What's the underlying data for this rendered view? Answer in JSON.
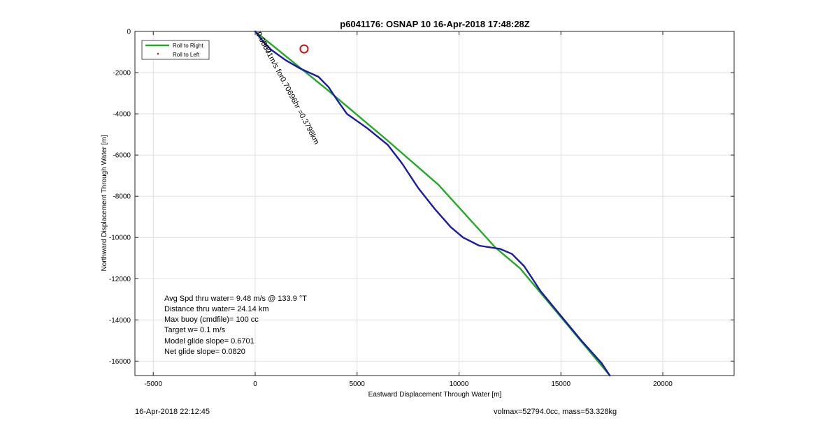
{
  "chart_data": {
    "type": "line",
    "title": "p6041176: OSNAP 10 16-Apr-2018 17:48:28Z",
    "xlabel": "Eastward Displacement Through Water [m]",
    "ylabel": "Northward Displacement Through Water [m]",
    "xlim": [
      -5900,
      23500
    ],
    "ylim": [
      -16700,
      0
    ],
    "xticks": [
      -5000,
      0,
      5000,
      10000,
      15000,
      20000
    ],
    "yticks": [
      0,
      -2000,
      -4000,
      -6000,
      -8000,
      -10000,
      -12000,
      -14000,
      -16000
    ],
    "grid": true,
    "legend_position": "top-left",
    "legend": [
      {
        "label": "Roll to Right",
        "color": "#22aa22",
        "style": "line"
      },
      {
        "label": "Roll to Left",
        "color": "#cc1111",
        "style": "dot"
      }
    ],
    "series": [
      {
        "color": "#22aa22",
        "points": [
          [
            0,
            0
          ],
          [
            3500,
            -2800
          ],
          [
            6500,
            -5300
          ],
          [
            9000,
            -7450
          ],
          [
            11800,
            -10500
          ],
          [
            13000,
            -11500
          ],
          [
            17400,
            -16700
          ]
        ]
      },
      {
        "color": "#1a1aaa",
        "points": [
          [
            0,
            0
          ],
          [
            400,
            -500
          ],
          [
            800,
            -900
          ],
          [
            1500,
            -1400
          ],
          [
            2200,
            -1800
          ],
          [
            3100,
            -2200
          ],
          [
            3600,
            -2700
          ],
          [
            4000,
            -3300
          ],
          [
            4500,
            -4000
          ],
          [
            5500,
            -4700
          ],
          [
            6500,
            -5500
          ],
          [
            7200,
            -6400
          ],
          [
            8000,
            -7600
          ],
          [
            8800,
            -8600
          ],
          [
            9600,
            -9500
          ],
          [
            10200,
            -10000
          ],
          [
            11000,
            -10400
          ],
          [
            12000,
            -10550
          ],
          [
            12600,
            -10800
          ],
          [
            13200,
            -11400
          ],
          [
            14000,
            -12600
          ],
          [
            15000,
            -13800
          ],
          [
            16000,
            -15000
          ],
          [
            17000,
            -16100
          ],
          [
            17400,
            -16700
          ]
        ]
      }
    ],
    "marker": {
      "x": 2400,
      "y": -850,
      "color": "#cc1111"
    },
    "rotated_annotation": "0.08871m/s for0.70696hr =0.3798km",
    "rotated_annotation_overlap": "0.0000",
    "stats": [
      "Avg Spd thru water=  9.48 m/s @ 133.9 °T",
      "Distance thru water= 24.14 km",
      "Max buoy (cmdfile)= 100 cc",
      "Target w= 0.1 m/s",
      "Model glide slope= 0.6701",
      "Net glide slope= 0.0820"
    ]
  },
  "footer": {
    "left": "16-Apr-2018 22:12:45",
    "right": "volmax=52794.0cc, mass=53.328kg"
  }
}
